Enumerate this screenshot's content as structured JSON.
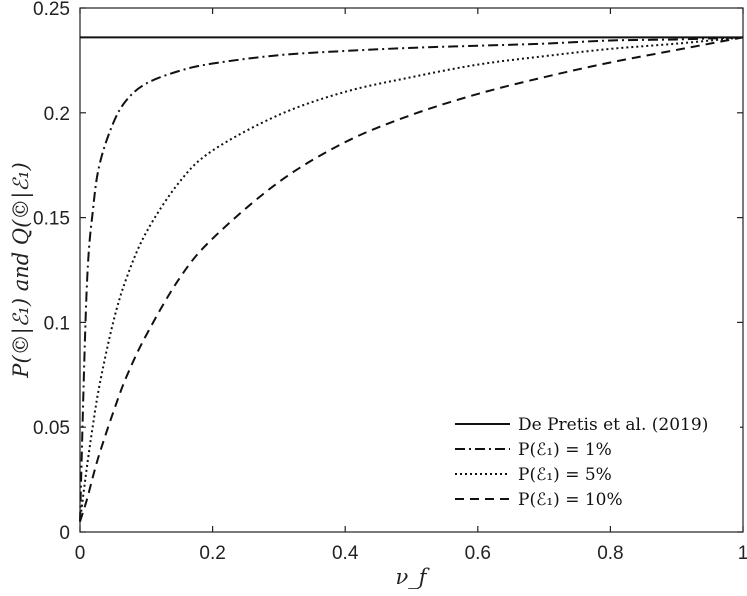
{
  "chart_data": {
    "type": "line",
    "title": "",
    "xlabel": "ν_f",
    "ylabel": "P(©|ℰ₁) and Q(©|ℰ₁)",
    "xlim": [
      0,
      1
    ],
    "ylim": [
      0,
      0.25
    ],
    "x_ticks": [
      "0",
      "0.2",
      "0.4",
      "0.6",
      "0.8",
      "1"
    ],
    "y_ticks": [
      "0",
      "0.05",
      "0.1",
      "0.15",
      "0.2",
      "0.25"
    ],
    "grid": false,
    "legend_position": "bottom-right",
    "x": [
      0.0,
      0.01,
      0.02,
      0.03,
      0.05,
      0.07,
      0.1,
      0.15,
      0.2,
      0.3,
      0.4,
      0.5,
      0.6,
      0.7,
      0.8,
      0.9,
      1.0
    ],
    "series": [
      {
        "name": "De Pretis et al. (2019)",
        "style": "solid",
        "values": [
          0.236,
          0.236,
          0.236,
          0.236,
          0.236,
          0.236,
          0.236,
          0.236,
          0.236,
          0.236,
          0.236,
          0.236,
          0.236,
          0.236,
          0.236,
          0.236,
          0.236
        ]
      },
      {
        "name": "P(ℰ₁) = 1%",
        "style": "dashdot",
        "values": [
          0.005,
          0.115,
          0.155,
          0.176,
          0.195,
          0.206,
          0.214,
          0.22,
          0.2235,
          0.2275,
          0.2295,
          0.231,
          0.232,
          0.233,
          0.2345,
          0.235,
          0.236
        ]
      },
      {
        "name": "P(ℰ₁) = 5%",
        "style": "dotted",
        "values": [
          0.005,
          0.03,
          0.052,
          0.071,
          0.1,
          0.121,
          0.143,
          0.167,
          0.182,
          0.199,
          0.21,
          0.217,
          0.223,
          0.227,
          0.2305,
          0.233,
          0.236
        ]
      },
      {
        "name": "P(ℰ₁) = 10%",
        "style": "dashed",
        "values": [
          0.005,
          0.015,
          0.027,
          0.038,
          0.057,
          0.074,
          0.094,
          0.121,
          0.14,
          0.167,
          0.186,
          0.199,
          0.209,
          0.217,
          0.224,
          0.23,
          0.236
        ]
      }
    ]
  }
}
